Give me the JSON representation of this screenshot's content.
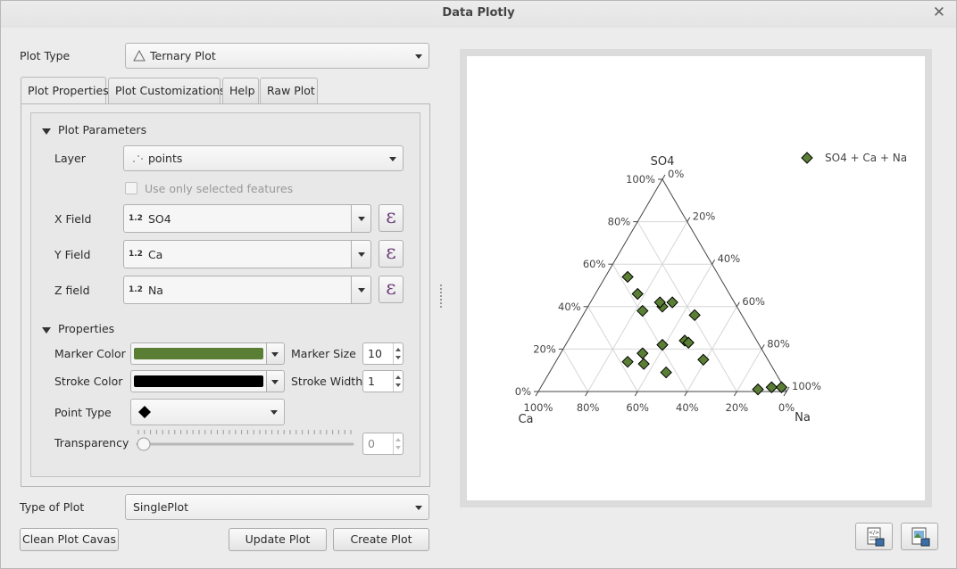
{
  "window": {
    "title": "Data Plotly"
  },
  "plot_type": {
    "label": "Plot Type",
    "value": "Ternary Plot"
  },
  "tabs": [
    {
      "label": "Plot Properties",
      "active": true
    },
    {
      "label": "Plot Customizations",
      "active": false
    },
    {
      "label": "Help",
      "active": false
    },
    {
      "label": "Raw Plot",
      "active": false
    }
  ],
  "plot_parameters": {
    "header": "Plot Parameters",
    "layer": {
      "label": "Layer",
      "value": "points"
    },
    "selected_only": {
      "label": "Use only selected features",
      "checked": false,
      "enabled": false
    },
    "x_field": {
      "label": "X Field",
      "type": "1.2",
      "value": "SO4"
    },
    "y_field": {
      "label": "Y Field",
      "type": "1.2",
      "value": "Ca"
    },
    "z_field": {
      "label": "Z field",
      "type": "1.2",
      "value": "Na"
    },
    "expression_symbol": "ε"
  },
  "properties": {
    "header": "Properties",
    "marker_color": {
      "label": "Marker Color",
      "color": "#5a7f34"
    },
    "marker_size": {
      "label": "Marker Size",
      "value": "10"
    },
    "stroke_color": {
      "label": "Stroke Color",
      "color": "#000000"
    },
    "stroke_width": {
      "label": "Stroke Width",
      "value": "1"
    },
    "point_type": {
      "label": "Point Type",
      "value": "diamond"
    },
    "transparency": {
      "label": "Transparency",
      "value": "0",
      "slider_fraction": 0
    }
  },
  "type_of_plot": {
    "label": "Type of Plot",
    "value": "SinglePlot"
  },
  "buttons": {
    "clean": "Clean Plot Cavas",
    "update": "Update Plot",
    "create": "Create Plot"
  },
  "icons": {
    "close": "close-icon",
    "triangle": "triangle-icon",
    "points": "points-icon",
    "save_html": "save-html-icon",
    "save_image": "save-image-icon"
  },
  "chart_data": {
    "type": "scatter",
    "subtype": "ternary",
    "axes": {
      "a": "SO4",
      "b": "Ca",
      "c": "Na"
    },
    "tick_labels": [
      "0%",
      "20%",
      "40%",
      "60%",
      "80%",
      "100%"
    ],
    "legend": {
      "entries": [
        "SO4 + Ca + Na"
      ],
      "position": "top-right"
    },
    "marker": {
      "symbol": "diamond",
      "color": "#5a7f34",
      "stroke": "#000000"
    },
    "points": [
      {
        "a": 54,
        "b": 37,
        "c": 9
      },
      {
        "a": 46,
        "b": 37,
        "c": 17
      },
      {
        "a": 38,
        "b": 39,
        "c": 23
      },
      {
        "a": 40,
        "b": 30,
        "c": 30
      },
      {
        "a": 42,
        "b": 30,
        "c": 28
      },
      {
        "a": 42,
        "b": 25,
        "c": 33
      },
      {
        "a": 36,
        "b": 19,
        "c": 45
      },
      {
        "a": 22,
        "b": 39,
        "c": 39
      },
      {
        "a": 24,
        "b": 29,
        "c": 47
      },
      {
        "a": 23,
        "b": 28,
        "c": 49
      },
      {
        "a": 18,
        "b": 49,
        "c": 33
      },
      {
        "a": 15,
        "b": 26,
        "c": 59
      },
      {
        "a": 14,
        "b": 57,
        "c": 29
      },
      {
        "a": 13,
        "b": 51,
        "c": 36
      },
      {
        "a": 9,
        "b": 44,
        "c": 47
      },
      {
        "a": 1,
        "b": 11,
        "c": 88
      },
      {
        "a": 2,
        "b": 5,
        "c": 93
      },
      {
        "a": 2,
        "b": 1,
        "c": 97
      }
    ]
  }
}
